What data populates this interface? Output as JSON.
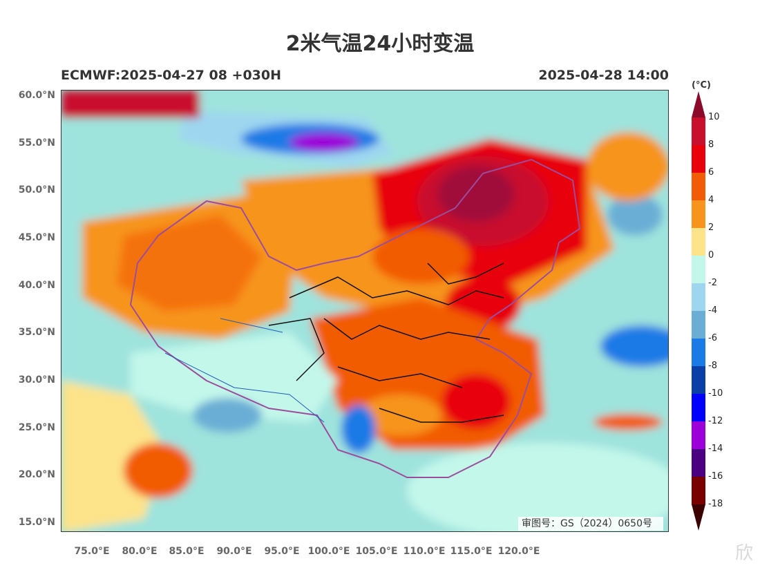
{
  "title": "2米气温24小时变温",
  "subtitle_left": "ECMWF:2025-04-27 08 +030H",
  "subtitle_right": "2025-04-28 14:00",
  "approval_number": "审图号：GS（2024）0650号",
  "watermark": "欣",
  "map": {
    "lat_ticks": [
      "60.0°N",
      "55.0°N",
      "50.0°N",
      "45.0°N",
      "40.0°N",
      "35.0°N",
      "30.0°N",
      "25.0°N",
      "20.0°N",
      "15.0°N"
    ],
    "lon_ticks": [
      "75.0°E",
      "80.0°E",
      "85.0°E",
      "90.0°E",
      "95.0°E",
      "100.0°E",
      "105.0°E",
      "110.0°E",
      "115.0°E",
      "120.0°E"
    ],
    "lat_range": [
      14.5,
      60.5
    ],
    "lon_range": [
      72,
      136
    ]
  },
  "colorbar": {
    "unit": "(°C)",
    "levels": [
      "10",
      "8",
      "6",
      "4",
      "2",
      "0",
      "-2",
      "-4",
      "-6",
      "-8",
      "-10",
      "-12",
      "-14",
      "-16",
      "-18"
    ],
    "colors": [
      "#8b0a2a",
      "#c8102e",
      "#e8000b",
      "#f25c05",
      "#f7941d",
      "#fde38a",
      "#c3f7ea",
      "#9ed6f0",
      "#6aaed6",
      "#1a7ae6",
      "#0a3fa8",
      "#0000ff",
      "#9b00d9",
      "#4b0082",
      "#7a0000",
      "#3d0000"
    ]
  }
}
